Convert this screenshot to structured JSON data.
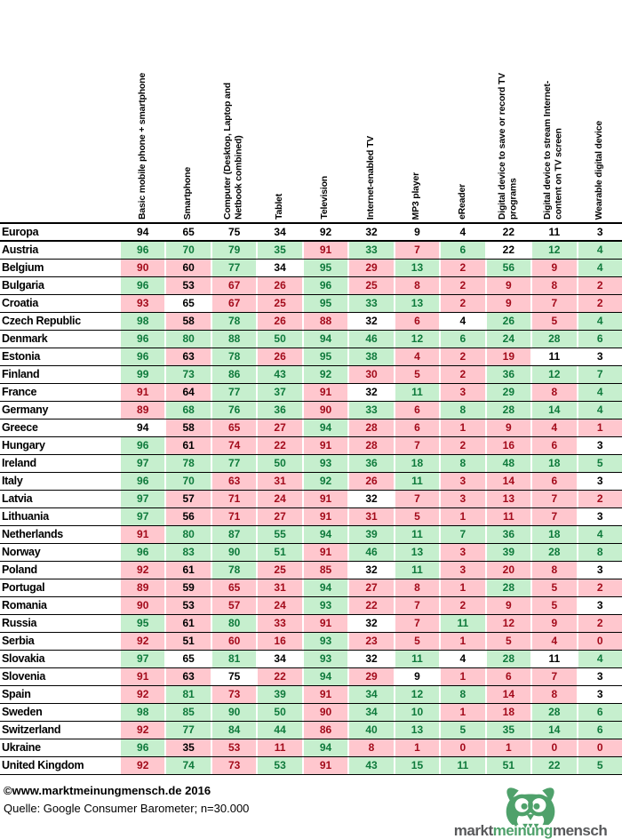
{
  "chart_data": {
    "type": "table",
    "columns": [
      "Basic mobile phone + smartphone",
      "Smartphone",
      "Computer (Desktop, Laptop and\nNetbook combined)",
      "Tablet",
      "Television",
      "Internet-enabled TV",
      "MP3 player",
      "eReader",
      "Digital device to save or record TV\nprograms",
      "Digital device to stream Internet-\ncontent on TV screen",
      "Wearable digital device"
    ],
    "rows": [
      {
        "country": "Europa",
        "values": [
          94,
          65,
          75,
          34,
          92,
          32,
          9,
          4,
          22,
          11,
          3
        ],
        "colors": "nnnnnnnnnnn"
      },
      {
        "country": "Austria",
        "values": [
          96,
          70,
          79,
          35,
          91,
          33,
          7,
          6,
          22,
          12,
          4
        ],
        "colors": "ggggrgrgwgg"
      },
      {
        "country": "Belgium",
        "values": [
          90,
          60,
          77,
          34,
          95,
          29,
          13,
          2,
          56,
          9,
          4
        ],
        "colors": "rpgwgrgrgrg"
      },
      {
        "country": "Bulgaria",
        "values": [
          96,
          53,
          67,
          26,
          96,
          25,
          8,
          2,
          9,
          8,
          2
        ],
        "colors": "gprrgrrrrrr"
      },
      {
        "country": "Croatia",
        "values": [
          93,
          65,
          67,
          25,
          95,
          33,
          13,
          2,
          9,
          7,
          2
        ],
        "colors": "rwrrgggrrrr"
      },
      {
        "country": "Czech Republic",
        "values": [
          98,
          58,
          78,
          26,
          88,
          32,
          6,
          4,
          26,
          5,
          4
        ],
        "colors": "gpgrrwrwgrg"
      },
      {
        "country": "Denmark",
        "values": [
          96,
          80,
          88,
          50,
          94,
          46,
          12,
          6,
          24,
          28,
          6
        ],
        "colors": "ggggggggggg"
      },
      {
        "country": "Estonia",
        "values": [
          96,
          63,
          78,
          26,
          95,
          38,
          4,
          2,
          19,
          11,
          3
        ],
        "colors": "gpgrggrrrww"
      },
      {
        "country": "Finland",
        "values": [
          99,
          73,
          86,
          43,
          92,
          30,
          5,
          2,
          36,
          12,
          7
        ],
        "colors": "gggggrrrggg"
      },
      {
        "country": "France",
        "values": [
          91,
          64,
          77,
          37,
          91,
          32,
          11,
          3,
          29,
          8,
          4
        ],
        "colors": "rpggrwgrgrg"
      },
      {
        "country": "Germany",
        "values": [
          89,
          68,
          76,
          36,
          90,
          33,
          6,
          8,
          28,
          14,
          4
        ],
        "colors": "rgggrgrgggg"
      },
      {
        "country": "Greece",
        "values": [
          94,
          58,
          65,
          27,
          94,
          28,
          6,
          1,
          9,
          4,
          1
        ],
        "colors": "wprrgrrrrrr"
      },
      {
        "country": "Hungary",
        "values": [
          96,
          61,
          74,
          22,
          91,
          28,
          7,
          2,
          16,
          6,
          3
        ],
        "colors": "gprrrrrrrrw"
      },
      {
        "country": "Ireland",
        "values": [
          97,
          78,
          77,
          50,
          93,
          36,
          18,
          8,
          48,
          18,
          5
        ],
        "colors": "ggggggggggg"
      },
      {
        "country": "Italy",
        "values": [
          96,
          70,
          63,
          31,
          92,
          26,
          11,
          3,
          14,
          6,
          3
        ],
        "colors": "ggrrgrgrrrw"
      },
      {
        "country": "Latvia",
        "values": [
          97,
          57,
          71,
          24,
          91,
          32,
          7,
          3,
          13,
          7,
          2
        ],
        "colors": "gprrrwrrrrr"
      },
      {
        "country": "Lithuania",
        "values": [
          97,
          56,
          71,
          27,
          91,
          31,
          5,
          1,
          11,
          7,
          3
        ],
        "colors": "gprrrrrrrrw"
      },
      {
        "country": "Netherlands",
        "values": [
          91,
          80,
          87,
          55,
          94,
          39,
          11,
          7,
          36,
          18,
          4
        ],
        "colors": "rgggggggggg"
      },
      {
        "country": "Norway",
        "values": [
          96,
          83,
          90,
          51,
          91,
          46,
          13,
          3,
          39,
          28,
          8
        ],
        "colors": "ggggrggrggg"
      },
      {
        "country": "Poland",
        "values": [
          92,
          61,
          78,
          25,
          85,
          32,
          11,
          3,
          20,
          8,
          3
        ],
        "colors": "rpgrrwgrrrw"
      },
      {
        "country": "Portugal",
        "values": [
          89,
          59,
          65,
          31,
          94,
          27,
          8,
          1,
          28,
          5,
          2
        ],
        "colors": "rprrgrrrgrr"
      },
      {
        "country": "Romania",
        "values": [
          90,
          53,
          57,
          24,
          93,
          22,
          7,
          2,
          9,
          5,
          3
        ],
        "colors": "rprrgrrrrrw"
      },
      {
        "country": "Russia",
        "values": [
          95,
          61,
          80,
          33,
          91,
          32,
          7,
          11,
          12,
          9,
          2
        ],
        "colors": "gpgrrwrgrrr"
      },
      {
        "country": "Serbia",
        "values": [
          92,
          51,
          60,
          16,
          93,
          23,
          5,
          1,
          5,
          4,
          0
        ],
        "colors": "rprrgrrrrrr"
      },
      {
        "country": "Slovakia",
        "values": [
          97,
          65,
          81,
          34,
          93,
          32,
          11,
          4,
          28,
          11,
          4
        ],
        "colors": "gwgwgwgwgwg"
      },
      {
        "country": "Slovenia",
        "values": [
          91,
          63,
          75,
          22,
          94,
          29,
          9,
          1,
          6,
          7,
          3
        ],
        "colors": "rpwrgrwrrrw"
      },
      {
        "country": "Spain",
        "values": [
          92,
          81,
          73,
          39,
          91,
          34,
          12,
          8,
          14,
          8,
          3
        ],
        "colors": "rgrgrgggrrw"
      },
      {
        "country": "Sweden",
        "values": [
          98,
          85,
          90,
          50,
          90,
          34,
          10,
          1,
          18,
          28,
          6
        ],
        "colors": "ggggrggrrgg"
      },
      {
        "country": "Switzerland",
        "values": [
          92,
          77,
          84,
          44,
          86,
          40,
          13,
          5,
          35,
          14,
          6
        ],
        "colors": "rgggrgggggg"
      },
      {
        "country": "Ukraine",
        "values": [
          96,
          35,
          53,
          11,
          94,
          8,
          1,
          0,
          1,
          0,
          0
        ],
        "colors": "gprrgrrrrrr"
      },
      {
        "country": "United Kingdom",
        "values": [
          92,
          74,
          73,
          53,
          91,
          43,
          15,
          11,
          51,
          22,
          5
        ],
        "colors": "rgrgrgggggg"
      }
    ],
    "cell_colors": {
      "green_bg": "#C6EFCE",
      "green_text": "#0F7A3C",
      "pink_bg": "#FFC7CE",
      "red_text": "#A30B1B",
      "white_bg": "#FFFFFF",
      "black_text": "#000000"
    }
  },
  "footer": {
    "copyright": "©www.marktmeinungmensch.de 2016",
    "source": "Quelle: Google Consumer Barometer; n=30.000"
  },
  "logo": {
    "part1": "markt",
    "part2": "meinung",
    "part3": "mensch",
    "green": "#4FA16B",
    "gray": "#58595B"
  }
}
